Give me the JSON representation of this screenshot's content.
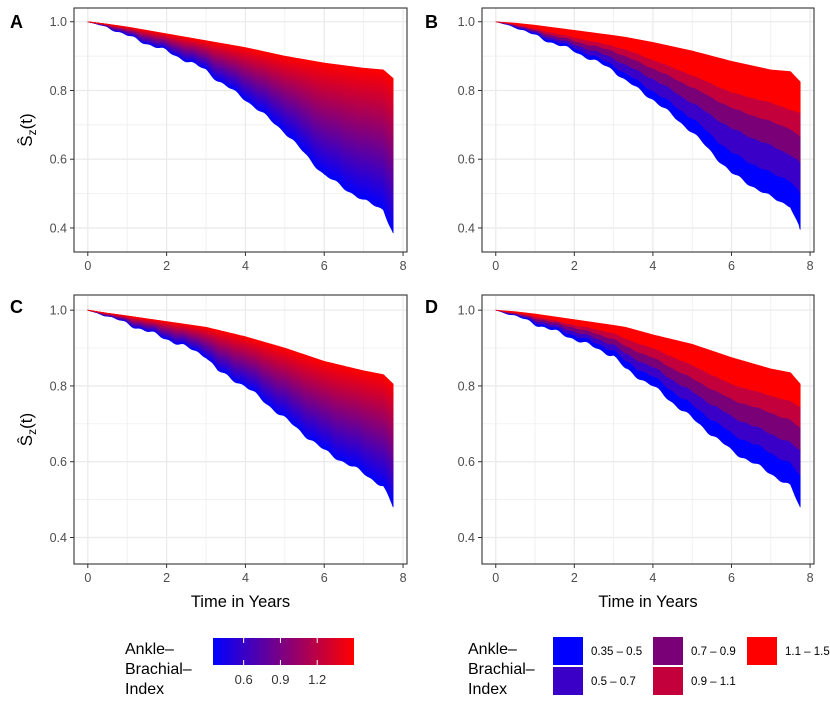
{
  "figure": {
    "ylabel": "Ŝz(t)",
    "colors": {
      "low": "#0000ff",
      "high": "#ff0000",
      "grid": "#ebebeb",
      "axis": "#333333"
    }
  },
  "chart_data": [
    {
      "panel": "A",
      "type": "area",
      "style": "gradient",
      "title": "A",
      "xlabel": "",
      "ylabel": "Ŝz(t)",
      "xlim": [
        -0.35,
        8.1
      ],
      "ylim": [
        0.33,
        1.04
      ],
      "xticks": [
        0,
        2,
        4,
        6,
        8
      ],
      "yticks": [
        0.4,
        0.6,
        0.8,
        1.0
      ],
      "yticklabels": [
        "0.4",
        "0.6",
        "0.8",
        "1.0"
      ],
      "upper": {
        "t": [
          0,
          0.5,
          1,
          2,
          3,
          4,
          5,
          6,
          7,
          7.5,
          7.75
        ],
        "s": [
          1.0,
          0.993,
          0.985,
          0.965,
          0.945,
          0.925,
          0.9,
          0.88,
          0.865,
          0.86,
          0.835
        ]
      },
      "lower": {
        "t": [
          0,
          0.5,
          1,
          2,
          3,
          3.3,
          4,
          5,
          6,
          7,
          7.5,
          7.75
        ],
        "s": [
          1.0,
          0.985,
          0.96,
          0.915,
          0.86,
          0.83,
          0.775,
          0.68,
          0.555,
          0.48,
          0.455,
          0.385
        ]
      }
    },
    {
      "panel": "B",
      "type": "area",
      "style": "bands",
      "title": "B",
      "xlabel": "",
      "ylabel": "",
      "xlim": [
        -0.35,
        8.1
      ],
      "ylim": [
        0.33,
        1.04
      ],
      "xticks": [
        0,
        2,
        4,
        6,
        8
      ],
      "yticks": [
        0.4,
        0.6,
        0.8,
        1.0
      ],
      "yticklabels": [
        "0.4",
        "0.6",
        "0.8",
        "1.0"
      ],
      "t": [
        0,
        0.5,
        1,
        2,
        3,
        3.3,
        4,
        5,
        6,
        7,
        7.5,
        7.75
      ],
      "boundaries": [
        [
          1.0,
          0.985,
          0.96,
          0.915,
          0.86,
          0.83,
          0.775,
          0.68,
          0.56,
          0.49,
          0.465,
          0.395
        ],
        [
          1.0,
          0.987,
          0.965,
          0.925,
          0.875,
          0.85,
          0.8,
          0.72,
          0.62,
          0.56,
          0.54,
          0.5
        ],
        [
          1.0,
          0.989,
          0.97,
          0.935,
          0.895,
          0.875,
          0.835,
          0.765,
          0.69,
          0.64,
          0.615,
          0.59
        ],
        [
          1.0,
          0.991,
          0.975,
          0.945,
          0.915,
          0.9,
          0.865,
          0.81,
          0.75,
          0.71,
          0.69,
          0.665
        ],
        [
          1.0,
          0.993,
          0.98,
          0.955,
          0.93,
          0.92,
          0.89,
          0.845,
          0.795,
          0.765,
          0.745,
          0.735
        ],
        [
          1.0,
          0.996,
          0.99,
          0.975,
          0.96,
          0.955,
          0.94,
          0.915,
          0.885,
          0.86,
          0.855,
          0.825
        ]
      ]
    },
    {
      "panel": "C",
      "type": "area",
      "style": "gradient",
      "title": "C",
      "xlabel": "Time in Years",
      "ylabel": "Ŝz(t)",
      "xlim": [
        -0.35,
        8.1
      ],
      "ylim": [
        0.33,
        1.04
      ],
      "xticks": [
        0,
        2,
        4,
        6,
        8
      ],
      "yticks": [
        0.4,
        0.6,
        0.8,
        1.0
      ],
      "yticklabels": [
        "0.4",
        "0.6",
        "0.8",
        "1.0"
      ],
      "upper": {
        "t": [
          0,
          0.5,
          1,
          2,
          3,
          4,
          5,
          6,
          7,
          7.5,
          7.75
        ],
        "s": [
          1.0,
          0.992,
          0.985,
          0.97,
          0.955,
          0.93,
          0.9,
          0.865,
          0.84,
          0.83,
          0.805
        ]
      },
      "lower": {
        "t": [
          0,
          0.5,
          1,
          2,
          3,
          3.3,
          4,
          5,
          6,
          7,
          7.5,
          7.75
        ],
        "s": [
          1.0,
          0.985,
          0.965,
          0.925,
          0.88,
          0.84,
          0.8,
          0.715,
          0.63,
          0.57,
          0.535,
          0.48
        ]
      }
    },
    {
      "panel": "D",
      "type": "area",
      "style": "bands",
      "title": "D",
      "xlabel": "Time in Years",
      "ylabel": "",
      "xlim": [
        -0.35,
        8.1
      ],
      "ylim": [
        0.33,
        1.04
      ],
      "xticks": [
        0,
        2,
        4,
        6,
        8
      ],
      "yticks": [
        0.4,
        0.6,
        0.8,
        1.0
      ],
      "yticklabels": [
        "0.4",
        "0.6",
        "0.8",
        "1.0"
      ],
      "t": [
        0,
        0.5,
        1,
        2,
        3,
        3.3,
        4,
        5,
        6,
        7,
        7.5,
        7.75
      ],
      "boundaries": [
        [
          1.0,
          0.985,
          0.965,
          0.925,
          0.88,
          0.845,
          0.8,
          0.715,
          0.63,
          0.57,
          0.535,
          0.48
        ],
        [
          1.0,
          0.987,
          0.97,
          0.935,
          0.895,
          0.865,
          0.825,
          0.75,
          0.675,
          0.625,
          0.595,
          0.565
        ],
        [
          1.0,
          0.989,
          0.975,
          0.945,
          0.91,
          0.885,
          0.85,
          0.785,
          0.72,
          0.675,
          0.65,
          0.63
        ],
        [
          1.0,
          0.991,
          0.98,
          0.955,
          0.925,
          0.905,
          0.875,
          0.82,
          0.765,
          0.73,
          0.71,
          0.69
        ],
        [
          1.0,
          0.993,
          0.984,
          0.962,
          0.94,
          0.925,
          0.9,
          0.855,
          0.805,
          0.775,
          0.76,
          0.745
        ],
        [
          1.0,
          0.996,
          0.99,
          0.975,
          0.96,
          0.955,
          0.935,
          0.91,
          0.875,
          0.845,
          0.835,
          0.805
        ]
      ]
    }
  ],
  "legend_continuous": {
    "title_lines": [
      "Ankle–",
      "Brachial–",
      "Index"
    ],
    "min": 0.35,
    "max": 1.5,
    "tick_values": [
      0.6,
      0.9,
      1.2
    ],
    "tick_labels": [
      "0.6",
      "0.9",
      "1.2"
    ]
  },
  "legend_discrete": {
    "title_lines": [
      "Ankle–",
      "Brachial–",
      "Index"
    ],
    "items": [
      {
        "label": "0.35 – 0.5",
        "color": "#0000ff"
      },
      {
        "label": "0.5 – 0.7",
        "color": "#3a00c8"
      },
      {
        "label": "0.7 – 0.9",
        "color": "#7a0078"
      },
      {
        "label": "0.9 – 1.1",
        "color": "#c4003c"
      },
      {
        "label": "1.1 – 1.5",
        "color": "#ff0000"
      }
    ]
  }
}
